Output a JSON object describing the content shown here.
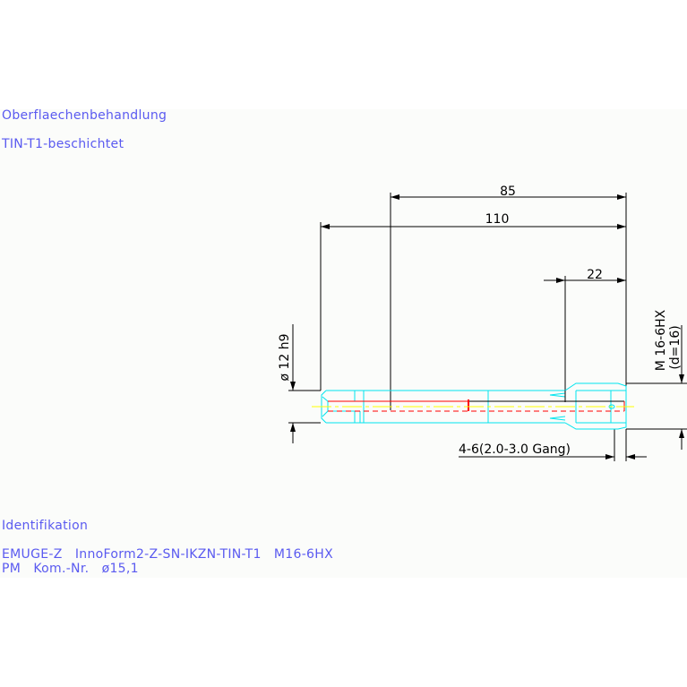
{
  "notes": {
    "surface_heading": "Oberflaechenbehandlung",
    "surface_value": "TIN-T1-beschichtet",
    "ident_heading": "Identifikation",
    "ident_line1": "EMUGE-Z   InnoForm2-Z-SN-IKZN-TIN-T1   M16-6HX",
    "ident_line2": "PM   Kom.-Nr.   ø15,1"
  },
  "dimensions": {
    "overall_length": "110",
    "length_85": "85",
    "thread_length": "22",
    "shank_diameter": "ø 12 h9",
    "thread_size": "M 16-6HX",
    "thread_d": "(d=16)",
    "chamfer": "4-6(2.0-3.0 Gang)"
  },
  "colors": {
    "text": "#5a5af0",
    "outline": "#00e5ee",
    "hidden": "#ff0000",
    "centerline": "#ffff00",
    "dimension": "#000000"
  }
}
